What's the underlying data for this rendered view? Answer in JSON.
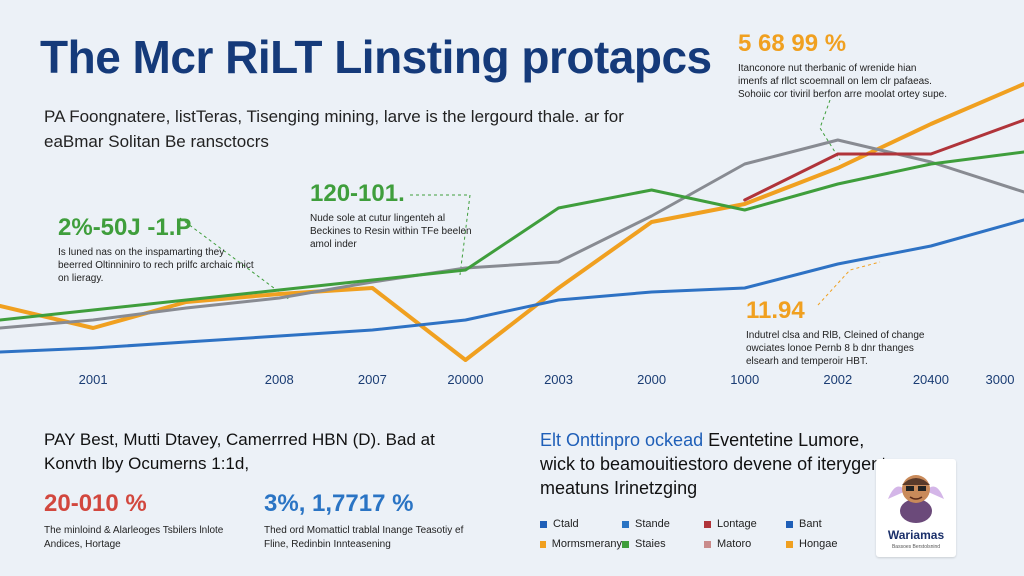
{
  "header": {
    "title": "The Mcr RiLT Linsting protapcs",
    "subtitle_line1": "PA Foongnatere, listTeras, Tisenging mining, larve is the lergourd thale. ar for",
    "subtitle_line2": "eaBmar Solitan Be ransctocrs"
  },
  "annotations": [
    {
      "value": "2%-50J -1.P",
      "text": "Is luned nas on the inspamarting they beerred Oltinniniro to rech prilfc archaic mict on lieragy.",
      "color": "#3f9e3c"
    },
    {
      "value": "120-101.",
      "text": "Nude sole at cutur lingenteh al Beckines to Resin within TFe beelen amol inder",
      "color": "#3f9e3c"
    },
    {
      "value": "5 68 99 %",
      "text": "Itanconore nut therbanic of wrenide hian imenfs af rllct scoemnall on lem clr pafaeas. Sohoiic cor tiviril berfon arre moolat ortey supe.",
      "color": "#f0a020"
    },
    {
      "value": "11.94",
      "text": "Indutrel clsa and RlB, Cleined of change owciates lonoe Pernb 8 b dnr thanges elsearh and temperoir HBT.",
      "color": "#f0a020"
    }
  ],
  "stats": [
    {
      "value": "20-010 %",
      "text": "The minloind & Alarleoges Tsbilers lnlote Andices, Hortage",
      "color": "#d2473e"
    },
    {
      "value": "3%,  1,7717 %",
      "text": "Thed ord Momatticl trablal Inange Teasotiy ef Fline, Redinbin Innteasening",
      "color": "#2a74c4"
    }
  ],
  "bottom_left": {
    "line1": "PAY Best, Mutti Dtavey, Camerrred HBN (D). Bad at",
    "line2": "Konvth lby Ocumerns 1:1d,"
  },
  "right_text": {
    "highlight": "Elt Onttinpro ockead",
    "rest": " Eventetine Lumore, wick to beamouitiestoro devene of iterygents meatuns Irinetzging"
  },
  "legend": [
    {
      "label": "Ctald",
      "color": "#1f5fb8"
    },
    {
      "label": "Stande",
      "color": "#2a74c4"
    },
    {
      "label": "Lontage",
      "color": "#b0343a"
    },
    {
      "label": "Bant",
      "color": "#1f5fb8"
    },
    {
      "label": "Mormsmerany",
      "color": "#f0a020"
    },
    {
      "label": "Staies",
      "color": "#3f9e3c"
    },
    {
      "label": "Matoro",
      "color": "#c98b8b"
    },
    {
      "label": "Hongae",
      "color": "#f0a020"
    }
  ],
  "logo": {
    "name": "Wariamas",
    "tagline": "Bassoes Berstolsnind"
  },
  "chart_data": {
    "type": "line",
    "x": [
      "",
      "2001",
      "",
      "2008",
      "2007",
      "20000",
      "2003",
      "2000",
      "1000",
      "2002",
      "20400",
      "3000"
    ],
    "series": [
      {
        "color": "#f0a020",
        "values": [
          37,
          26,
          39,
          43,
          46,
          10,
          46,
          79,
          88,
          106,
          128,
          148
        ]
      },
      {
        "color": "#2e72c4",
        "values": [
          14,
          16,
          19,
          22,
          25,
          30,
          40,
          44,
          46,
          58,
          67,
          80
        ]
      },
      {
        "color": "#888b92",
        "values": [
          26,
          30,
          36,
          41,
          49,
          56,
          59,
          82,
          108,
          120,
          109,
          94
        ]
      },
      {
        "color": "#3f9e3c",
        "values": [
          30,
          35,
          40,
          45,
          50,
          55,
          86,
          95,
          85,
          98,
          108,
          114
        ]
      },
      {
        "color": "#b0343a",
        "values": [
          null,
          null,
          null,
          null,
          null,
          null,
          null,
          null,
          90,
          113,
          113,
          130
        ]
      }
    ],
    "ylim": [
      0,
      170
    ]
  }
}
